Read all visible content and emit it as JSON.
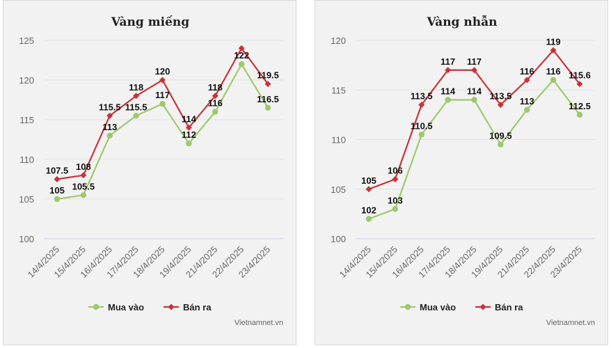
{
  "colors": {
    "buy": "#9dc96b",
    "sell": "#c8323a",
    "grid": "#e2e2e2",
    "base": "#ccccee"
  },
  "credit": "Vietnamnet.vn",
  "chart_data": [
    {
      "type": "line",
      "title": "Vàng miếng",
      "categories": [
        "14/4/2025",
        "15/4/2025",
        "16/4/2025",
        "17/4/2025",
        "18/4/2025",
        "19/4/2025",
        "21/4/2025",
        "22/4/2025",
        "23/4/2025"
      ],
      "ylim": [
        100,
        125
      ],
      "yticks": [
        100,
        105,
        110,
        115,
        120,
        125
      ],
      "grid": true,
      "legend": "bottom-center",
      "series": [
        {
          "name": "Mua vào",
          "values": [
            105,
            105.5,
            113,
            115.5,
            117,
            112,
            116,
            122,
            116.5
          ],
          "labels": [
            "105",
            "105.5",
            "113",
            "115.5",
            "117",
            "112",
            "116",
            "122",
            "116.5"
          ]
        },
        {
          "name": "Bán ra",
          "values": [
            107.5,
            108,
            115.5,
            118,
            120,
            114,
            118,
            124,
            119.5
          ],
          "labels": [
            "107.5",
            "108",
            "115.5",
            "118",
            "120",
            "114",
            "118",
            "",
            "119.5"
          ]
        }
      ]
    },
    {
      "type": "line",
      "title": "Vàng nhẫn",
      "categories": [
        "14/4/2025",
        "15/4/2025",
        "16/4/2025",
        "17/4/2025",
        "18/4/2025",
        "19/4/2025",
        "21/4/2025",
        "22/4/2025",
        "23/4/2025"
      ],
      "ylim": [
        100,
        120
      ],
      "yticks": [
        100,
        105,
        110,
        115,
        120
      ],
      "grid": true,
      "legend": "bottom-center",
      "series": [
        {
          "name": "Mua vào",
          "values": [
            102,
            103,
            110.5,
            114,
            114,
            109.5,
            113,
            116,
            112.5
          ],
          "labels": [
            "102",
            "103",
            "110.5",
            "114",
            "114",
            "109.5",
            "113",
            "116",
            "112.5"
          ]
        },
        {
          "name": "Bán ra",
          "values": [
            105,
            106,
            113.5,
            117,
            117,
            113.5,
            116,
            119,
            115.6
          ],
          "labels": [
            "105",
            "106",
            "113.5",
            "117",
            "117",
            "113.5",
            "116",
            "119",
            "115.6"
          ]
        }
      ]
    }
  ]
}
